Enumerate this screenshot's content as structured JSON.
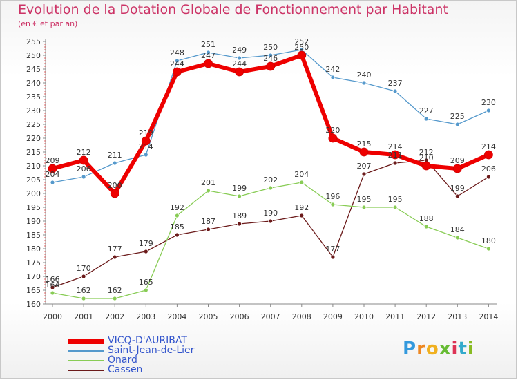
{
  "title": "Evolution de la Dotation Globale de Fonctionnement par Habitant",
  "subtitle": "(en € et par an)",
  "logo_text": "Proxiti",
  "chart_data": {
    "type": "line",
    "categories": [
      "2000",
      "2001",
      "2002",
      "2003",
      "2004",
      "2005",
      "2006",
      "2007",
      "2008",
      "2009",
      "2010",
      "2011",
      "2012",
      "2013",
      "2014"
    ],
    "ylim": [
      160,
      255
    ],
    "yticks": [
      160,
      165,
      170,
      175,
      180,
      185,
      190,
      195,
      200,
      205,
      210,
      215,
      220,
      225,
      230,
      235,
      240,
      245,
      250,
      255
    ],
    "grid": false,
    "legend_position": "bottom-left",
    "series": [
      {
        "name": "VICQ-D'AURIBAT",
        "color": "#ee0000",
        "width": 6,
        "values": [
          209,
          212,
          200,
          219,
          244,
          247,
          244,
          246,
          250,
          220,
          215,
          214,
          210,
          209,
          214
        ]
      },
      {
        "name": "Saint-Jean-de-Lier",
        "color": "#5599cc",
        "width": 1.3,
        "values": [
          204,
          206,
          211,
          214,
          248,
          251,
          249,
          250,
          252,
          242,
          240,
          237,
          227,
          225,
          230
        ]
      },
      {
        "name": "Onard",
        "color": "#88cc55",
        "width": 1.3,
        "values": [
          164,
          162,
          162,
          165,
          192,
          201,
          199,
          202,
          204,
          196,
          195,
          195,
          188,
          184,
          180
        ]
      },
      {
        "name": "Cassen",
        "color": "#6b1a1a",
        "width": 1.3,
        "values": [
          166,
          170,
          177,
          179,
          185,
          187,
          189,
          190,
          192,
          177,
          207,
          211,
          212,
          199,
          206
        ]
      }
    ]
  }
}
